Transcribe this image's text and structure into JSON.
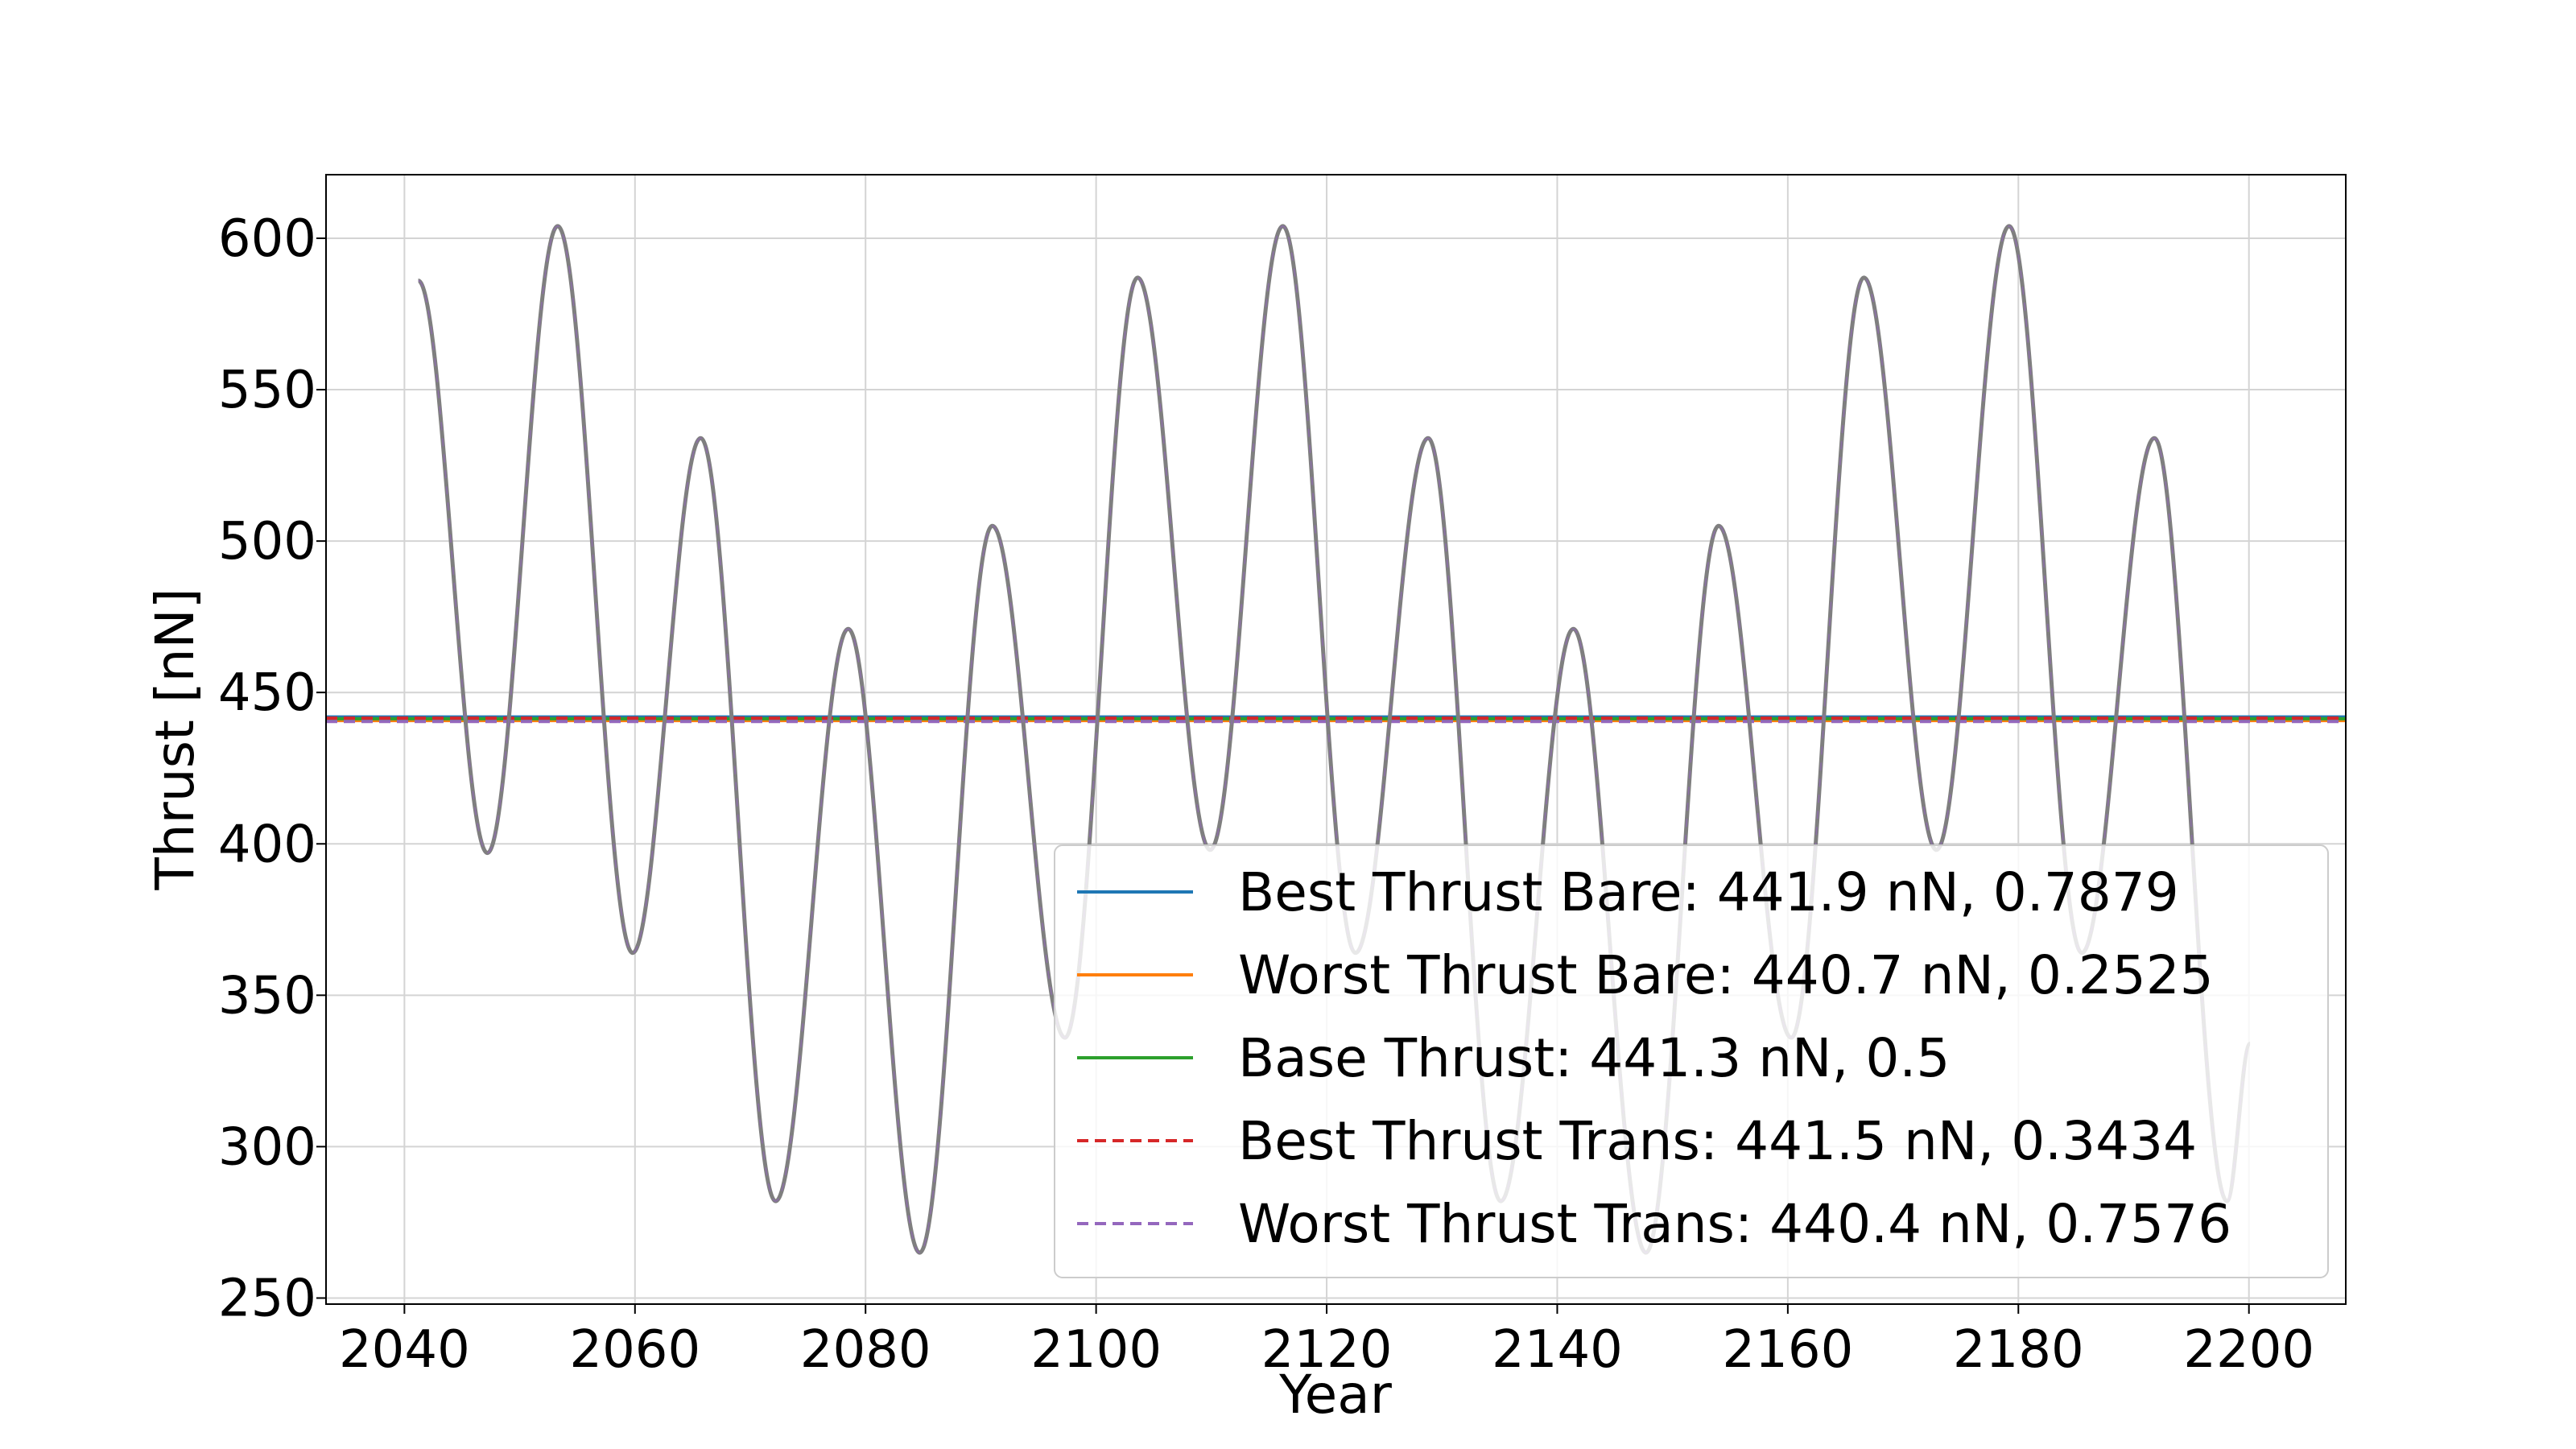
{
  "chart_data": {
    "type": "line",
    "title": "",
    "xlabel": "Year",
    "ylabel": "Thrust [nN]",
    "xlim": [
      2033.2,
      2208.4
    ],
    "ylim": [
      248,
      621
    ],
    "xticks": [
      2040,
      2060,
      2080,
      2100,
      2120,
      2140,
      2160,
      2180,
      2200
    ],
    "yticks": [
      250,
      300,
      350,
      400,
      450,
      500,
      550,
      600
    ],
    "grid": true,
    "legend_position": "lower-right",
    "oscillation": {
      "description": "Thrust oscillating between local extrema (all five series coincide on this curve)",
      "color": "#7f7f7f",
      "points": [
        [
          2041.2,
          586
        ],
        [
          2047.2,
          397
        ],
        [
          2053.3,
          604
        ],
        [
          2059.8,
          364
        ],
        [
          2065.7,
          534
        ],
        [
          2072.2,
          282
        ],
        [
          2078.5,
          471
        ],
        [
          2084.7,
          265
        ],
        [
          2091.0,
          505
        ],
        [
          2097.3,
          336
        ],
        [
          2103.6,
          587
        ],
        [
          2109.9,
          398
        ],
        [
          2116.2,
          604
        ],
        [
          2122.5,
          364
        ],
        [
          2128.8,
          534
        ],
        [
          2135.1,
          282
        ],
        [
          2141.4,
          471
        ],
        [
          2147.7,
          265
        ],
        [
          2154.0,
          505
        ],
        [
          2160.3,
          336
        ],
        [
          2166.6,
          587
        ],
        [
          2172.9,
          398
        ],
        [
          2179.2,
          604
        ],
        [
          2185.5,
          364
        ],
        [
          2191.8,
          534
        ],
        [
          2198.1,
          282
        ],
        [
          2200.1,
          334
        ]
      ]
    },
    "series": [
      {
        "name": "Best Thrust Bare: 441.9 nN, 0.7879",
        "value": 441.9,
        "color": "#1f77b4",
        "style": "solid"
      },
      {
        "name": "Worst Thrust Bare: 440.7 nN, 0.2525",
        "value": 440.7,
        "color": "#ff7f0e",
        "style": "solid"
      },
      {
        "name": "Base Thrust: 441.3 nN, 0.5",
        "value": 441.3,
        "color": "#2ca02c",
        "style": "solid"
      },
      {
        "name": "Best Thrust Trans: 441.5 nN, 0.3434",
        "value": 441.5,
        "color": "#d62728",
        "style": "dashed"
      },
      {
        "name": "Worst Thrust Trans: 440.4 nN, 0.7576",
        "value": 440.4,
        "color": "#9467bd",
        "style": "dashed"
      }
    ]
  }
}
